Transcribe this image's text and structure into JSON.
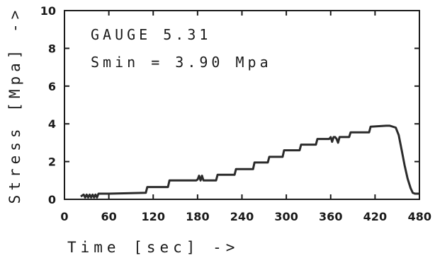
{
  "chart_data": {
    "type": "line",
    "title": "",
    "xlabel": "Time [sec] ->",
    "ylabel": "Stress [Mpa] ->",
    "xlim": [
      0,
      480
    ],
    "ylim": [
      0,
      10
    ],
    "x_ticks": [
      "0",
      "60",
      "120",
      "180",
      "240",
      "300",
      "360",
      "420",
      "480"
    ],
    "y_ticks": [
      "0",
      "2",
      "4",
      "6",
      "8",
      "10"
    ],
    "grid": false,
    "legend": "none",
    "annotations": [
      "GAUGE 5.31",
      "Smin = 3.90 Mpa"
    ],
    "series": [
      {
        "line_color": "#2b2b2b",
        "x": [
          22,
          26,
          28,
          30,
          32,
          34,
          36,
          38,
          40,
          42,
          44,
          46,
          60,
          110,
          112,
          140,
          142,
          178,
          180,
          182,
          184,
          186,
          188,
          190,
          205,
          207,
          230,
          232,
          255,
          257,
          275,
          277,
          295,
          297,
          318,
          320,
          340,
          342,
          358,
          360,
          362,
          364,
          366,
          368,
          370,
          372,
          385,
          387,
          412,
          414,
          435,
          440,
          448,
          452,
          456,
          460,
          464,
          468,
          471,
          474,
          477,
          480
        ],
        "y": [
          0.15,
          0.25,
          0.1,
          0.25,
          0.1,
          0.25,
          0.1,
          0.25,
          0.1,
          0.25,
          0.1,
          0.3,
          0.3,
          0.35,
          0.65,
          0.65,
          1.0,
          1.0,
          1.05,
          1.25,
          1.0,
          1.25,
          1.0,
          1.0,
          1.0,
          1.3,
          1.3,
          1.6,
          1.6,
          1.95,
          1.95,
          2.25,
          2.25,
          2.6,
          2.6,
          2.9,
          2.9,
          3.2,
          3.2,
          3.3,
          3.05,
          3.3,
          3.3,
          3.2,
          3.0,
          3.3,
          3.3,
          3.55,
          3.55,
          3.85,
          3.9,
          3.9,
          3.8,
          3.4,
          2.6,
          1.8,
          1.1,
          0.6,
          0.35,
          0.3,
          0.3,
          0.3
        ]
      }
    ]
  }
}
